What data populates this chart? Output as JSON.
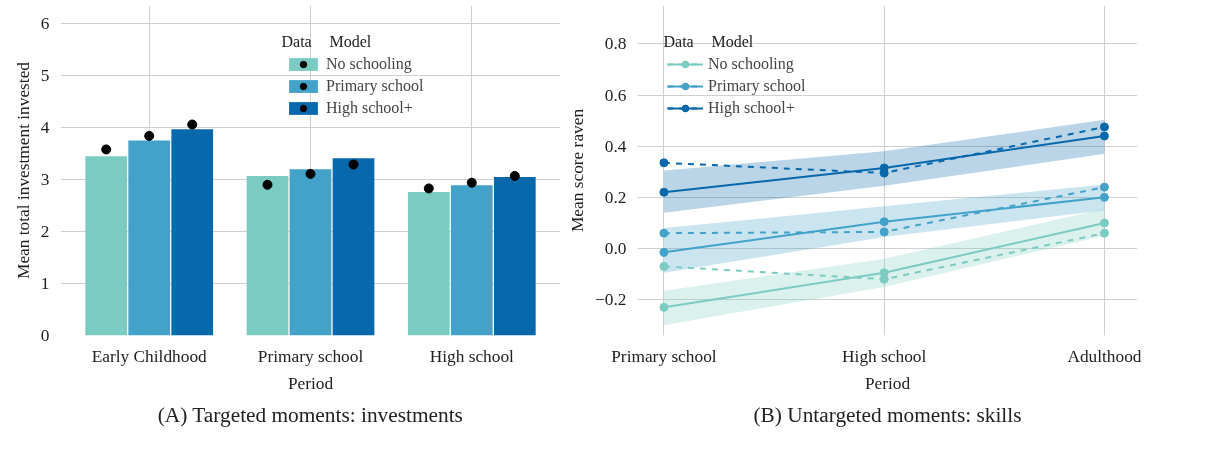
{
  "chart_data": [
    {
      "type": "bar",
      "title": "(A) Targeted moments: investments",
      "xlabel": "Period",
      "ylabel": "Mean total investment invested",
      "categories": [
        "Early Childhood",
        "Primary school",
        "High school"
      ],
      "series": [
        {
          "name": "No schooling",
          "color": "#7ccbc2",
          "values": [
            3.45,
            3.07,
            2.76
          ]
        },
        {
          "name": "Primary school",
          "color": "#43a2ca",
          "values": [
            3.75,
            3.2,
            2.89
          ]
        },
        {
          "name": "High school+",
          "color": "#0868ac",
          "values": [
            3.97,
            3.41,
            3.05
          ]
        },
        {
          "type": "scatter",
          "color": "#000000",
          "values": [
            3.58,
            2.9,
            2.83
          ]
        },
        {
          "type": "scatter",
          "color": "#000000",
          "values": [
            3.84,
            3.11,
            2.94
          ]
        },
        {
          "type": "scatter",
          "color": "#000000",
          "values": [
            4.06,
            3.29,
            3.07
          ]
        }
      ],
      "ylim": [
        0,
        6.35
      ],
      "yticks": [
        0,
        1,
        2,
        3,
        4,
        5,
        6
      ],
      "grid": true,
      "legend": "top right",
      "annotations": [
        "Data",
        "Model"
      ]
    },
    {
      "type": "line",
      "title": "(B) Untargeted moments: skills",
      "xlabel": "Period",
      "ylabel": "Mean score raven",
      "categories": [
        "Primary school",
        "High school",
        "Adulthood"
      ],
      "series": [
        {
          "name": "No schooling",
          "color": "#7ccbc2",
          "values": [
            -0.23,
            -0.095,
            0.1
          ],
          "lower": [
            -0.3,
            -0.15,
            0.05
          ],
          "upper": [
            -0.165,
            -0.04,
            0.155
          ]
        },
        {
          "name": "Primary school",
          "color": "#43a2ca",
          "values": [
            -0.015,
            0.105,
            0.2
          ],
          "lower": [
            -0.095,
            0.045,
            0.15
          ],
          "upper": [
            0.08,
            0.165,
            0.25
          ]
        },
        {
          "name": "High school+",
          "color": "#0868ac",
          "values": [
            0.22,
            0.315,
            0.44
          ],
          "lower": [
            0.14,
            0.245,
            0.37
          ],
          "upper": [
            0.305,
            0.38,
            0.503
          ]
        },
        {
          "color": "#7ccbc2",
          "line_style": "dashed",
          "values": [
            -0.07,
            -0.12,
            0.06
          ]
        },
        {
          "color": "#43a2ca",
          "line_style": "dashed",
          "values": [
            0.06,
            0.065,
            0.24
          ]
        },
        {
          "color": "#0868ac",
          "line_style": "dashed",
          "values": [
            0.335,
            0.295,
            0.475
          ]
        }
      ],
      "ylim": [
        -0.34,
        0.95
      ],
      "yticks": [
        {
          "value": -0.2,
          "label": "−0.2"
        },
        {
          "value": 0,
          "label": "0.0"
        },
        {
          "value": 0.2,
          "label": "0.2"
        },
        {
          "value": 0.4,
          "label": "0.4"
        },
        {
          "value": 0.6,
          "label": "0.6"
        },
        {
          "value": 0.8,
          "label": "0.8"
        }
      ],
      "marker": "circle",
      "line_style": "solid",
      "grid": true,
      "legend": "top left",
      "annotations": [
        "Data",
        "Model"
      ]
    }
  ]
}
